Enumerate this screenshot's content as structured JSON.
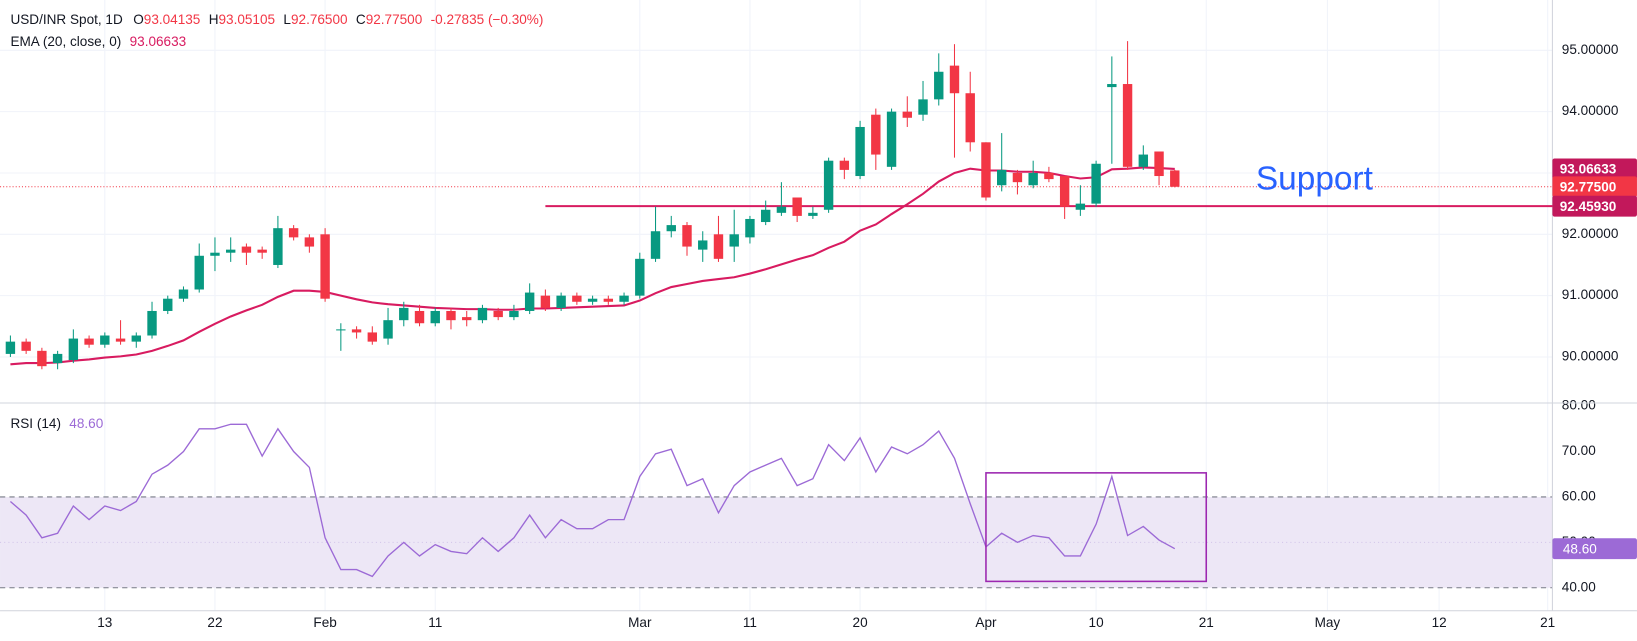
{
  "chart_data": [
    {
      "type": "candlestick",
      "title": "USD/INR Spot, 1D",
      "ohlc_legend": [
        {
          "label": "O",
          "value": "93.04135"
        },
        {
          "label": "H",
          "value": "93.05105"
        },
        {
          "label": "L",
          "value": "92.76500"
        },
        {
          "label": "C",
          "value": "92.77500"
        }
      ],
      "change": "-0.27835 (−0.30%)",
      "open": [
        90.05,
        90.25,
        90.1,
        89.9,
        89.95,
        90.3,
        90.2,
        90.3,
        90.25,
        90.35,
        90.75,
        90.95,
        91.1,
        91.65,
        91.7,
        91.8,
        91.75,
        91.5,
        92.1,
        91.95,
        92.0,
        90.45,
        90.45,
        90.4,
        90.3,
        90.6,
        90.75,
        90.55,
        90.75,
        90.65,
        90.6,
        90.75,
        90.65,
        90.75,
        91.0,
        90.8,
        91.0,
        90.9,
        90.95,
        90.9,
        91.0,
        91.6,
        92.05,
        92.15,
        91.75,
        92.0,
        91.8,
        91.95,
        92.2,
        92.35,
        92.6,
        92.3,
        92.4,
        93.2,
        92.95,
        93.95,
        93.1,
        94.0,
        93.95,
        94.2,
        94.75,
        94.3,
        93.5,
        92.8,
        93.0,
        92.8,
        93.0,
        92.95,
        92.4,
        92.5,
        94.4,
        94.45,
        93.1,
        93.35,
        93.04135
      ],
      "high": [
        90.35,
        90.3,
        90.15,
        90.1,
        90.45,
        90.35,
        90.4,
        90.6,
        90.4,
        90.9,
        91.0,
        91.15,
        91.85,
        91.95,
        91.95,
        91.85,
        91.8,
        92.3,
        92.15,
        92.0,
        92.1,
        90.55,
        90.5,
        90.5,
        90.8,
        90.9,
        90.85,
        90.8,
        90.8,
        90.75,
        90.85,
        90.8,
        90.85,
        91.2,
        91.1,
        91.05,
        91.05,
        91.0,
        91.0,
        91.05,
        91.7,
        92.45,
        92.3,
        92.2,
        92.05,
        92.3,
        92.4,
        92.3,
        92.55,
        92.85,
        92.6,
        92.45,
        93.25,
        93.25,
        93.85,
        94.05,
        94.05,
        94.25,
        94.5,
        94.95,
        95.1,
        94.65,
        93.5,
        93.65,
        93.05,
        93.2,
        93.1,
        92.95,
        92.8,
        93.2,
        94.9,
        95.15,
        93.45,
        93.35,
        93.05105
      ],
      "low": [
        90.0,
        90.05,
        89.8,
        89.8,
        89.9,
        90.15,
        90.15,
        90.2,
        90.15,
        90.3,
        90.7,
        90.9,
        91.05,
        91.4,
        91.55,
        91.5,
        91.6,
        91.45,
        91.9,
        91.7,
        90.9,
        90.1,
        90.3,
        90.2,
        90.2,
        90.5,
        90.5,
        90.5,
        90.45,
        90.5,
        90.55,
        90.6,
        90.6,
        90.7,
        90.75,
        90.75,
        90.85,
        90.85,
        90.85,
        90.85,
        90.95,
        91.55,
        91.95,
        91.65,
        91.55,
        91.55,
        91.55,
        91.85,
        92.15,
        92.3,
        92.2,
        92.25,
        92.35,
        92.9,
        92.9,
        93.05,
        93.05,
        93.75,
        93.85,
        94.1,
        93.25,
        93.35,
        92.55,
        92.7,
        92.65,
        92.75,
        92.85,
        92.25,
        92.3,
        92.45,
        93.15,
        93.05,
        93.05,
        92.8,
        92.765
      ],
      "close": [
        90.25,
        90.1,
        89.85,
        90.05,
        90.3,
        90.2,
        90.35,
        90.25,
        90.35,
        90.75,
        90.95,
        91.1,
        91.65,
        91.7,
        91.75,
        91.7,
        91.7,
        92.1,
        91.95,
        91.8,
        90.95,
        90.45,
        90.4,
        90.25,
        90.6,
        90.8,
        90.55,
        90.75,
        90.6,
        90.6,
        90.8,
        90.65,
        90.75,
        91.05,
        90.8,
        91.0,
        90.9,
        90.95,
        90.9,
        91.0,
        91.6,
        92.05,
        92.15,
        91.8,
        91.9,
        91.6,
        92.0,
        92.25,
        92.4,
        92.45,
        92.3,
        92.35,
        93.2,
        93.05,
        93.75,
        93.3,
        94.0,
        93.9,
        94.2,
        94.65,
        94.3,
        93.5,
        92.6,
        93.05,
        92.85,
        93.0,
        92.9,
        92.45,
        92.5,
        93.15,
        94.45,
        93.1,
        93.3,
        92.95,
        92.775
      ],
      "up_color": "#089981",
      "down_color": "#f23645",
      "overlays": [
        {
          "name": "EMA (20, close, 0)",
          "legend_value": "93.06633",
          "color": "#d81b60",
          "values": [
            89.88,
            89.9,
            89.9,
            89.91,
            89.94,
            89.96,
            89.99,
            90.01,
            90.04,
            90.1,
            90.18,
            90.27,
            90.41,
            90.54,
            90.66,
            90.76,
            90.85,
            90.98,
            91.08,
            91.08,
            91.06,
            91.0,
            90.94,
            90.89,
            90.86,
            90.84,
            90.82,
            90.8,
            90.79,
            90.78,
            90.78,
            90.77,
            90.77,
            90.79,
            90.79,
            90.8,
            90.81,
            90.82,
            90.83,
            90.84,
            90.92,
            91.04,
            91.14,
            91.19,
            91.24,
            91.27,
            91.3,
            91.36,
            91.43,
            91.51,
            91.59,
            91.66,
            91.78,
            91.88,
            92.06,
            92.16,
            92.33,
            92.49,
            92.66,
            92.86,
            93.0,
            93.07,
            93.04,
            93.04,
            93.02,
            93.02,
            93.0,
            92.95,
            92.91,
            92.93,
            93.06,
            93.07,
            93.09,
            93.08,
            93.06633
          ]
        }
      ],
      "support": {
        "text": "Support",
        "value": 92.4593,
        "x_start": 34,
        "color": "#d81b60",
        "text_color": "#2962ff"
      },
      "price_tags": [
        {
          "value": 93.06633,
          "label": "93.06633",
          "color": "#c2185b"
        },
        {
          "value": 92.775,
          "label": "92.77500",
          "color": "#f23645"
        },
        {
          "value": 92.4593,
          "label": "92.45930",
          "color": "#c2185b"
        }
      ],
      "xlim": [
        -0.66,
        98
      ],
      "xticks": [
        {
          "value": 6,
          "label": "13"
        },
        {
          "value": 13,
          "label": "22"
        },
        {
          "value": 20,
          "label": "Feb"
        },
        {
          "value": 27,
          "label": "11"
        },
        {
          "value": 40,
          "label": "Mar"
        },
        {
          "value": 47,
          "label": "11"
        },
        {
          "value": 54,
          "label": "20"
        },
        {
          "value": 62,
          "label": "Apr"
        },
        {
          "value": 69,
          "label": "10"
        },
        {
          "value": 76,
          "label": "21"
        },
        {
          "value": 83.7,
          "label": "May"
        },
        {
          "value": 90.8,
          "label": "12"
        },
        {
          "value": 97.7,
          "label": "21"
        }
      ],
      "ylim": [
        89.25,
        95.82
      ],
      "yticks": [
        {
          "value": 90,
          "label": "90.00000"
        },
        {
          "value": 91,
          "label": "91.00000"
        },
        {
          "value": 92,
          "label": "92.00000"
        },
        {
          "value": 93,
          "label": "93.00000"
        },
        {
          "value": 94,
          "label": "94.00000"
        },
        {
          "value": 95,
          "label": "95.00000"
        }
      ],
      "grid": true
    },
    {
      "type": "line",
      "series": [
        {
          "name": "RSI (14)",
          "legend_value": "48.60",
          "color": "#9c6ad6",
          "values": [
            59,
            56,
            51,
            52,
            58,
            55,
            58,
            57,
            59,
            65,
            67,
            70,
            75,
            75,
            76,
            76,
            69,
            75,
            70,
            66.5,
            51,
            44,
            44,
            42.5,
            47,
            50,
            47,
            49.5,
            48,
            47.5,
            51,
            48,
            51,
            56,
            51,
            55,
            53,
            53,
            55,
            55,
            64.5,
            69.5,
            70.5,
            62.5,
            64,
            56.5,
            62.5,
            65.5,
            67,
            68.5,
            62.5,
            64,
            71.5,
            68,
            73,
            65.5,
            71,
            69.5,
            71.5,
            74.5,
            68.5,
            58.5,
            49,
            52,
            50,
            51.5,
            51,
            47,
            47,
            54,
            64.5,
            51.5,
            53.5,
            50.5,
            48.6
          ]
        }
      ],
      "tag": {
        "value": 48.6,
        "label": "48.60"
      },
      "bands": [
        40,
        60
      ],
      "midline": 50,
      "band_color": "#ede7f6",
      "box": {
        "x": [
          62,
          76
        ],
        "y": [
          41.4,
          65.3
        ],
        "color": "#9c27b0"
      },
      "ylim": [
        34.94,
        80.69
      ],
      "yticks": [
        {
          "value": 40,
          "label": "40.00"
        },
        {
          "value": 50,
          "label": "50.00"
        },
        {
          "value": 60,
          "label": "60.00"
        },
        {
          "value": 70,
          "label": "70.00"
        },
        {
          "value": 80,
          "label": "80.00"
        }
      ]
    }
  ]
}
